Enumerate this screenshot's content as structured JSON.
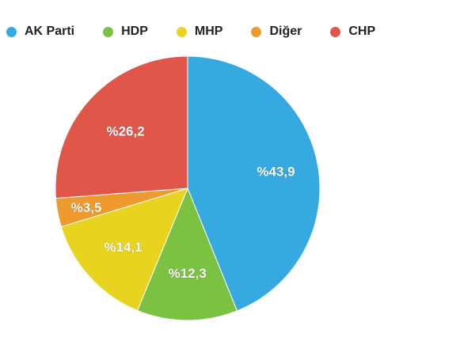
{
  "chart_data": {
    "type": "pie",
    "title": "",
    "legend_position": "top",
    "start_angle_deg": 0,
    "direction": "clockwise",
    "slices": [
      {
        "name": "AK Parti",
        "value": 43.9,
        "label": "%43,9",
        "color": "#36a9e1"
      },
      {
        "name": "HDP",
        "value": 12.3,
        "label": "%12,3",
        "color": "#7cc242"
      },
      {
        "name": "MHP",
        "value": 14.1,
        "label": "%14,1",
        "color": "#e8d31f"
      },
      {
        "name": "Diğer",
        "value": 3.5,
        "label": "%3,5",
        "color": "#ef9a2f"
      },
      {
        "name": "CHP",
        "value": 26.2,
        "label": "%26,2",
        "color": "#e0574a"
      }
    ]
  }
}
